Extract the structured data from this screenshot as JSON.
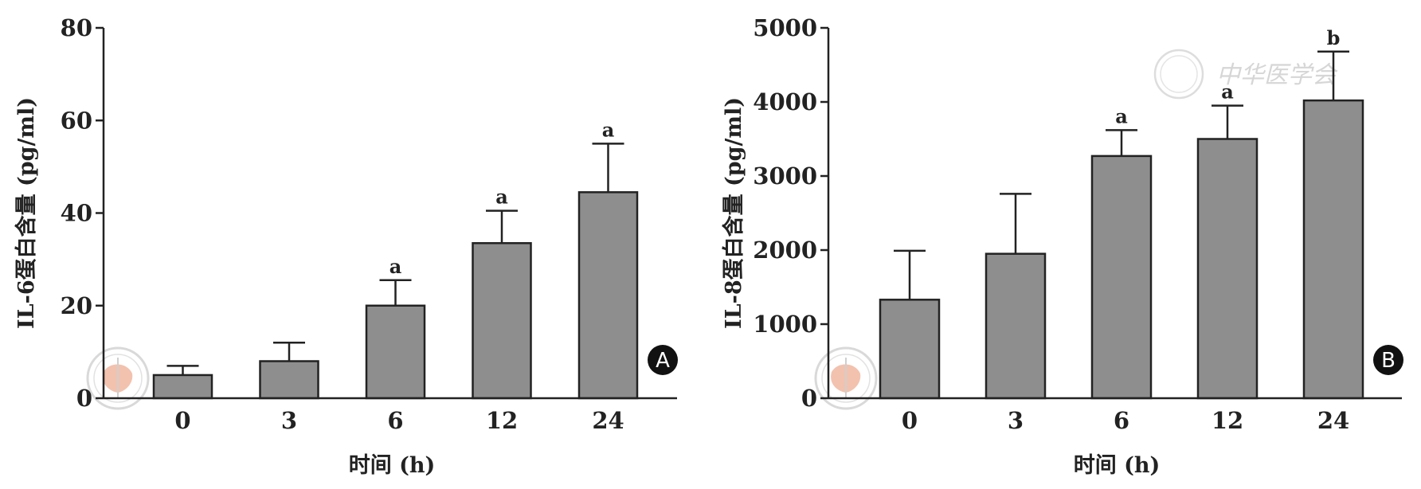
{
  "chart_data": [
    {
      "type": "bar",
      "panel": "A",
      "categories": [
        "0",
        "3",
        "6",
        "12",
        "24"
      ],
      "values": [
        5,
        8,
        20,
        33.5,
        44.5
      ],
      "error_upper": [
        7,
        12,
        25.5,
        40.5,
        55
      ],
      "significance": [
        "",
        "",
        "a",
        "a",
        "a"
      ],
      "ylabel": "IL-6蛋白含量 (pg/ml)",
      "xlabel": "时间 (h)",
      "ylim": [
        0,
        80
      ],
      "yticks": [
        "0",
        "20",
        "40",
        "60",
        "80"
      ],
      "bar_color": "#8f8e8f"
    },
    {
      "type": "bar",
      "panel": "B",
      "categories": [
        "0",
        "3",
        "6",
        "12",
        "24"
      ],
      "values": [
        1330,
        1950,
        3270,
        3500,
        4020
      ],
      "error_upper": [
        1990,
        2760,
        3620,
        3950,
        4680
      ],
      "significance": [
        "",
        "",
        "a",
        "a",
        "b"
      ],
      "ylabel": "IL-8蛋白含量 (pg/ml)",
      "xlabel": "时间 (h)",
      "ylim": [
        0,
        5000
      ],
      "yticks": [
        "0",
        "1000",
        "2000",
        "3000",
        "4000",
        "5000"
      ],
      "bar_color": "#8f8e8f"
    }
  ],
  "watermark": {
    "text": "中华医学会",
    "logo_icon": "chinese-medical-association-seal-icon"
  }
}
